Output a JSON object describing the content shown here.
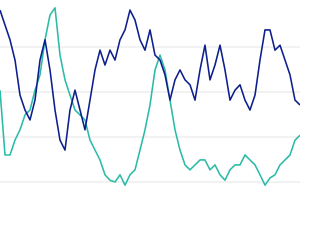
{
  "chart_data": {
    "type": "line",
    "x": [
      0,
      1,
      2,
      3,
      4,
      5,
      6,
      7,
      8,
      9,
      10,
      11,
      12,
      13,
      14,
      15,
      16,
      17,
      18,
      19,
      20,
      21,
      22,
      23,
      24,
      25,
      26,
      27,
      28,
      29,
      30,
      31,
      32,
      33,
      34,
      35,
      36,
      37,
      38,
      39,
      40,
      41,
      42,
      43,
      44,
      45,
      46,
      47,
      48,
      49,
      50,
      51,
      52,
      53,
      54,
      55,
      56,
      57,
      58,
      59,
      60
    ],
    "xlim": [
      0,
      60
    ],
    "ylim": [
      -0.4,
      4
    ],
    "yticks": [
      0,
      1,
      2,
      3
    ],
    "grid": true,
    "series": [
      {
        "color": "#2bbba6",
        "values": [
          2.04,
          0.6,
          0.6,
          0.93,
          1.16,
          1.49,
          1.6,
          2.04,
          2.38,
          3.16,
          3.71,
          3.87,
          2.82,
          2.27,
          1.93,
          1.6,
          1.49,
          1.38,
          0.93,
          0.71,
          0.49,
          0.16,
          0.04,
          0,
          0.16,
          -0.07,
          0.16,
          0.27,
          0.71,
          1.16,
          1.71,
          2.49,
          2.82,
          2.49,
          1.82,
          1.16,
          0.71,
          0.38,
          0.27,
          0.38,
          0.49,
          0.49,
          0.27,
          0.38,
          0.16,
          0.04,
          0.27,
          0.38,
          0.38,
          0.6,
          0.49,
          0.38,
          0.16,
          -0.07,
          0.09,
          0.16,
          0.38,
          0.49,
          0.6,
          0.93,
          1.04
        ]
      },
      {
        "color": "#0d1f8c",
        "values": [
          3.82,
          3.49,
          3.16,
          2.71,
          1.93,
          1.6,
          1.38,
          1.82,
          2.71,
          3.16,
          2.49,
          1.6,
          0.93,
          0.71,
          1.6,
          2.04,
          1.6,
          1.16,
          1.82,
          2.49,
          2.93,
          2.6,
          2.93,
          2.71,
          3.16,
          3.38,
          3.82,
          3.6,
          3.16,
          2.93,
          3.38,
          2.82,
          2.71,
          2.38,
          1.82,
          2.27,
          2.49,
          2.27,
          2.16,
          1.82,
          2.49,
          3.04,
          2.27,
          2.6,
          3.04,
          2.49,
          1.82,
          2.04,
          2.16,
          1.82,
          1.6,
          1.93,
          2.71,
          3.38,
          3.38,
          2.93,
          3.04,
          2.71,
          2.38,
          1.82,
          1.71
        ]
      }
    ]
  }
}
